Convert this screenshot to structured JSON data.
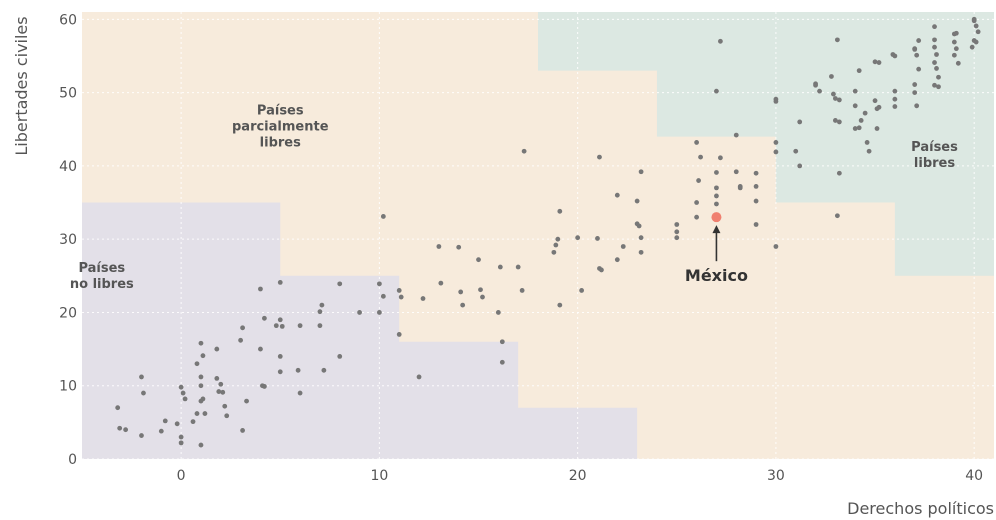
{
  "chart_data": {
    "type": "scatter",
    "xlabel": "Derechos políticos",
    "ylabel": "Libertades civiles",
    "xlim": [
      -5,
      41
    ],
    "ylim": [
      0,
      61
    ],
    "xticks": [
      0,
      10,
      20,
      30,
      40
    ],
    "yticks": [
      0,
      10,
      20,
      30,
      40,
      50,
      60
    ],
    "grid": true,
    "colors": {
      "background": "#f7ebdc",
      "no_libres": "#e3e0e8",
      "libres": "#dce8e2",
      "point": "#777777",
      "highlight": "#f08070",
      "text": "#555555"
    },
    "regions": [
      {
        "name": "Países no libres",
        "label_lines": [
          "Países",
          "no libres"
        ],
        "label_at": [
          -4,
          25.5
        ]
      },
      {
        "name": "Países parcialmente libres",
        "label_lines": [
          "Países",
          "parcialmente",
          "libres"
        ],
        "label_at": [
          5,
          47
        ]
      },
      {
        "name": "Países libres",
        "label_lines": [
          "Países",
          "libres"
        ],
        "label_at": [
          38,
          42
        ]
      }
    ],
    "highlight": {
      "label": "México",
      "x": 27,
      "y": 33
    },
    "points": [
      [
        -3.2,
        7
      ],
      [
        -3.1,
        4.2
      ],
      [
        -2.8,
        4
      ],
      [
        -2,
        11.2
      ],
      [
        -1.9,
        9
      ],
      [
        -2,
        3.2
      ],
      [
        -1,
        3.8
      ],
      [
        -0.8,
        5.2
      ],
      [
        -0.2,
        4.8
      ],
      [
        0,
        9.8
      ],
      [
        0.1,
        9
      ],
      [
        0.2,
        8.2
      ],
      [
        0,
        3
      ],
      [
        0,
        2.2
      ],
      [
        0.6,
        5.1
      ],
      [
        0.8,
        6.2
      ],
      [
        0.8,
        13
      ],
      [
        1,
        15.8
      ],
      [
        1.1,
        14.1
      ],
      [
        1,
        11.2
      ],
      [
        1,
        10
      ],
      [
        1.1,
        8.2
      ],
      [
        1,
        7.9
      ],
      [
        1.2,
        6.2
      ],
      [
        1,
        1.9
      ],
      [
        1.8,
        15
      ],
      [
        1.8,
        11
      ],
      [
        1.9,
        9.2
      ],
      [
        2,
        10.2
      ],
      [
        2.1,
        9.1
      ],
      [
        2.2,
        7.2
      ],
      [
        2.3,
        5.9
      ],
      [
        3,
        16.2
      ],
      [
        3.1,
        17.9
      ],
      [
        3.1,
        3.9
      ],
      [
        3.3,
        7.9
      ],
      [
        4,
        23.2
      ],
      [
        4,
        15
      ],
      [
        4.1,
        10
      ],
      [
        4.2,
        9.9
      ],
      [
        4.2,
        19.2
      ],
      [
        4.8,
        18.2
      ],
      [
        5,
        24.1
      ],
      [
        5,
        19
      ],
      [
        5,
        14
      ],
      [
        5,
        11.9
      ],
      [
        5.1,
        18.1
      ],
      [
        6,
        18.2
      ],
      [
        5.9,
        12.1
      ],
      [
        6,
        9
      ],
      [
        7,
        20.1
      ],
      [
        7.1,
        21
      ],
      [
        7,
        18.2
      ],
      [
        7.2,
        12.1
      ],
      [
        8,
        23.9
      ],
      [
        8,
        14
      ],
      [
        9,
        20
      ],
      [
        10,
        23.9
      ],
      [
        10,
        20
      ],
      [
        10.2,
        22.2
      ],
      [
        10.2,
        33.1
      ],
      [
        11,
        23
      ],
      [
        11.1,
        22.1
      ],
      [
        11,
        17
      ],
      [
        12,
        11.2
      ],
      [
        12.2,
        21.9
      ],
      [
        13,
        29
      ],
      [
        13.1,
        24
      ],
      [
        14,
        28.9
      ],
      [
        14.1,
        22.8
      ],
      [
        14.2,
        21
      ],
      [
        15,
        27.2
      ],
      [
        15.1,
        23.1
      ],
      [
        15.2,
        22.1
      ],
      [
        16,
        20
      ],
      [
        16.1,
        26.2
      ],
      [
        16.2,
        16
      ],
      [
        16.2,
        13.2
      ],
      [
        17,
        26.2
      ],
      [
        17.2,
        23
      ],
      [
        17.3,
        42
      ],
      [
        18.8,
        28.2
      ],
      [
        18.9,
        29.2
      ],
      [
        19,
        30
      ],
      [
        19.1,
        33.8
      ],
      [
        19.1,
        21
      ],
      [
        20,
        30.2
      ],
      [
        20.2,
        23
      ],
      [
        21,
        30.1
      ],
      [
        21.1,
        26
      ],
      [
        21.2,
        25.8
      ],
      [
        21.1,
        41.2
      ],
      [
        22,
        36
      ],
      [
        22,
        27.2
      ],
      [
        22.3,
        29
      ],
      [
        23,
        35.2
      ],
      [
        23,
        32.1
      ],
      [
        23.1,
        31.8
      ],
      [
        23.2,
        30.2
      ],
      [
        23.2,
        28.2
      ],
      [
        23.2,
        39.2
      ],
      [
        25,
        32
      ],
      [
        25,
        31
      ],
      [
        25,
        30.2
      ],
      [
        26,
        43.2
      ],
      [
        26,
        33
      ],
      [
        26,
        35
      ],
      [
        26.1,
        38
      ],
      [
        26.2,
        41.2
      ],
      [
        27,
        50.2
      ],
      [
        27,
        39.1
      ],
      [
        27,
        35.9
      ],
      [
        27,
        34.8
      ],
      [
        27.2,
        57
      ],
      [
        27.2,
        41.1
      ],
      [
        27,
        37
      ],
      [
        28,
        44.2
      ],
      [
        28,
        39.2
      ],
      [
        28.2,
        37.2
      ],
      [
        28.2,
        37
      ],
      [
        29,
        39
      ],
      [
        29,
        37.2
      ],
      [
        29,
        35.2
      ],
      [
        29,
        32
      ],
      [
        30,
        49.1
      ],
      [
        30,
        48.8
      ],
      [
        30,
        43.2
      ],
      [
        30,
        41.9
      ],
      [
        30,
        29
      ],
      [
        31,
        42
      ],
      [
        31.2,
        46
      ],
      [
        31.2,
        40
      ],
      [
        32,
        51.2
      ],
      [
        32,
        51
      ],
      [
        32.2,
        50.2
      ],
      [
        32.8,
        52.2
      ],
      [
        32.9,
        49.8
      ],
      [
        33.1,
        57.2
      ],
      [
        33,
        49.2
      ],
      [
        33.2,
        49
      ],
      [
        33,
        46.2
      ],
      [
        33.2,
        46
      ],
      [
        33.2,
        39
      ],
      [
        33.1,
        33.2
      ],
      [
        34,
        50.2
      ],
      [
        34,
        48.2
      ],
      [
        34,
        45.1
      ],
      [
        34.2,
        45.2
      ],
      [
        34.3,
        46.2
      ],
      [
        34.2,
        53
      ],
      [
        34.5,
        47.2
      ],
      [
        34.6,
        43.2
      ],
      [
        34.7,
        42
      ],
      [
        35,
        54.2
      ],
      [
        35.2,
        54.1
      ],
      [
        35,
        48.9
      ],
      [
        35.2,
        48
      ],
      [
        35.1,
        47.8
      ],
      [
        35.1,
        45.1
      ],
      [
        35.9,
        55.2
      ],
      [
        36,
        55
      ],
      [
        36,
        50.2
      ],
      [
        36,
        49.1
      ],
      [
        36,
        48.1
      ],
      [
        37,
        56
      ],
      [
        37,
        55.9
      ],
      [
        37.1,
        55.1
      ],
      [
        37.2,
        53.2
      ],
      [
        37,
        51.1
      ],
      [
        37,
        50
      ],
      [
        37.1,
        48.2
      ],
      [
        37.2,
        57.1
      ],
      [
        38,
        59
      ],
      [
        38,
        57.2
      ],
      [
        38,
        56.2
      ],
      [
        38.1,
        55.2
      ],
      [
        38,
        54.1
      ],
      [
        38.1,
        53.3
      ],
      [
        38.2,
        52.1
      ],
      [
        38,
        51
      ],
      [
        38.2,
        50.8
      ],
      [
        39,
        58
      ],
      [
        39,
        56.9
      ],
      [
        39.1,
        56
      ],
      [
        39,
        55.1
      ],
      [
        39.2,
        54
      ],
      [
        39.1,
        58.1
      ],
      [
        40,
        60
      ],
      [
        40,
        59.8
      ],
      [
        40.1,
        59.1
      ],
      [
        40.2,
        58.3
      ],
      [
        40,
        57.1
      ],
      [
        40.1,
        56.9
      ],
      [
        39.9,
        56.2
      ]
    ]
  }
}
